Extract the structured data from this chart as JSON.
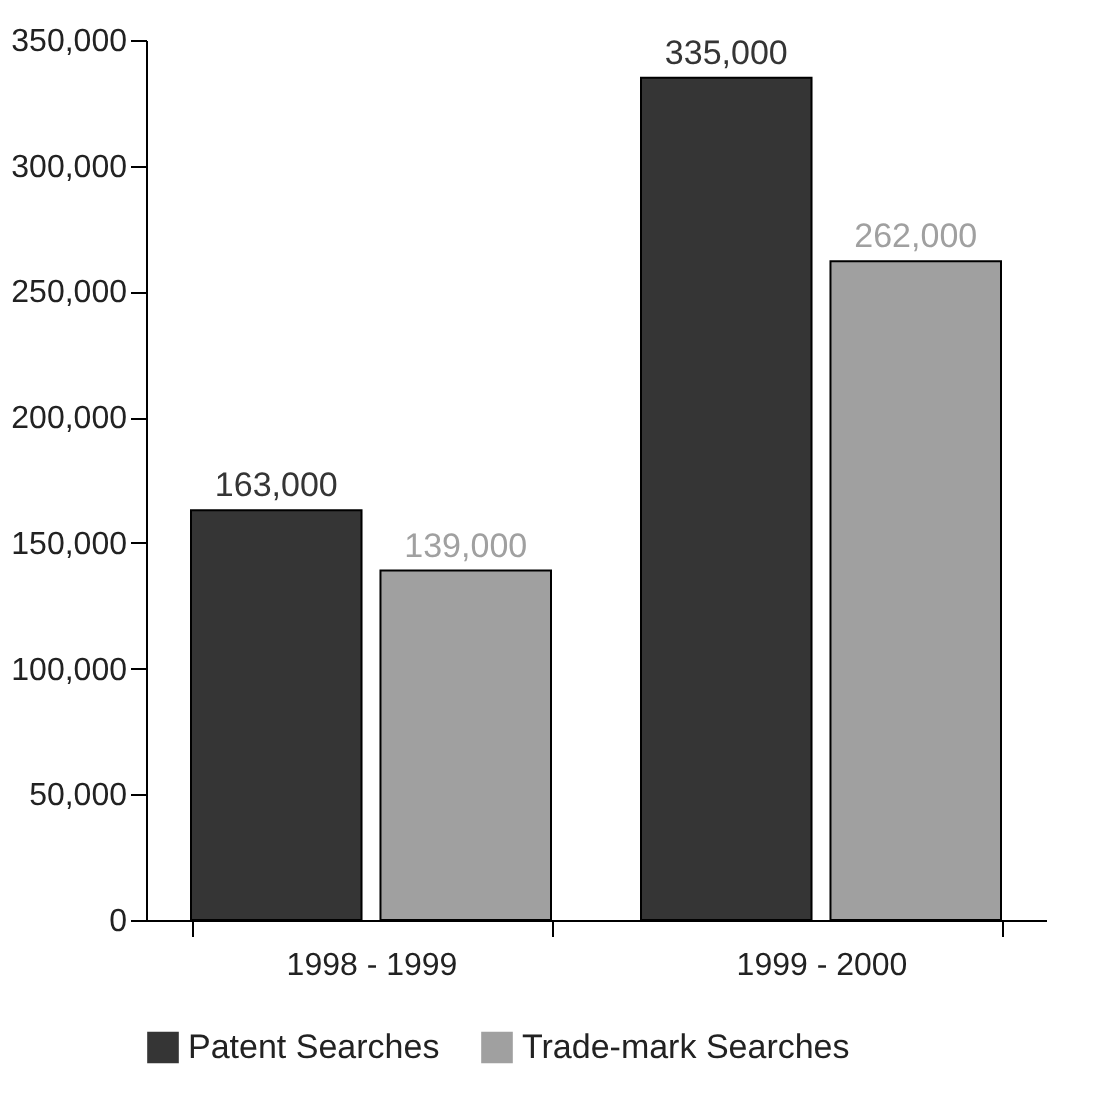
{
  "chart_data": {
    "type": "bar",
    "categories": [
      "1998 - 1999",
      "1999 - 2000"
    ],
    "series": [
      {
        "name": "Patent Searches",
        "color": "#353535",
        "values": [
          163000,
          335000
        ],
        "value_labels": [
          "163,000",
          "335,000"
        ]
      },
      {
        "name": "Trade-mark Searches",
        "color": "#a0a0a0",
        "values": [
          139000,
          262000
        ],
        "value_labels": [
          "139,000",
          "262,000"
        ]
      }
    ],
    "ylim": [
      0,
      350000
    ],
    "yticks": [
      0,
      {
        "value": 50000,
        "label": "50,000"
      },
      {
        "value": 100000,
        "label": "100,000"
      },
      {
        "value": 150000,
        "label": "150,000"
      },
      {
        "value": 200000,
        "label": "200,000"
      },
      {
        "value": 250000,
        "label": "250,000"
      },
      {
        "value": 300000,
        "label": "300,000"
      },
      {
        "value": 350000,
        "label": "350,000"
      }
    ],
    "grid": false,
    "legend": "bottom"
  }
}
